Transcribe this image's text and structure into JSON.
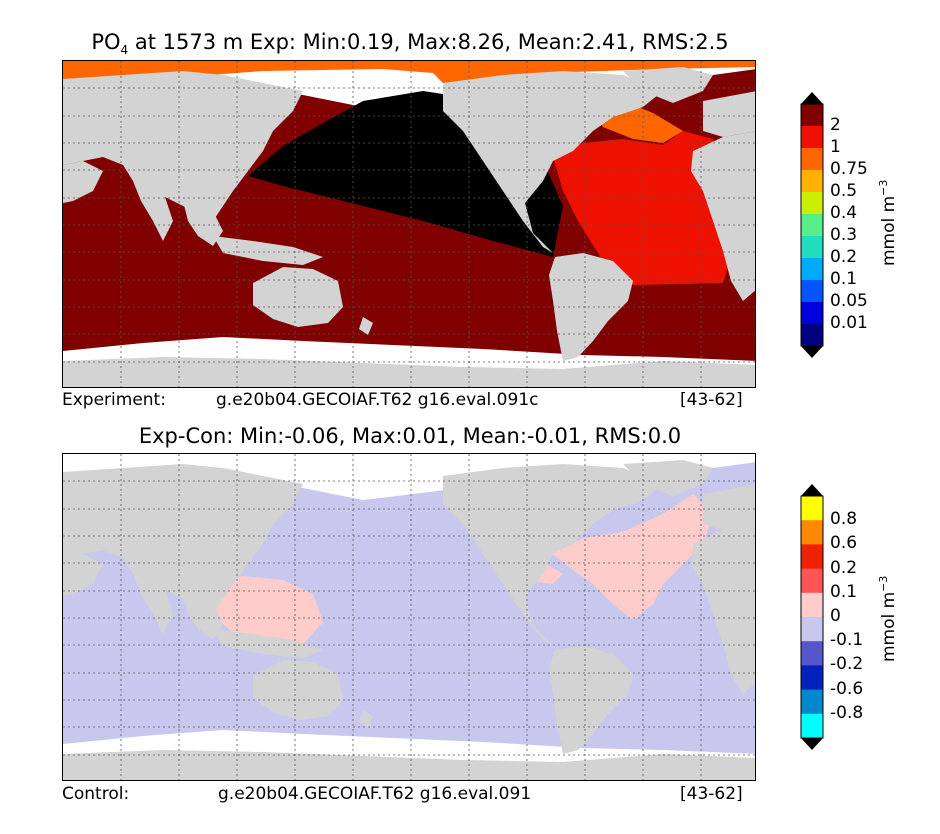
{
  "panels": [
    {
      "title_var": "PO",
      "title_sub": "4",
      "title_rest": " at 1573 m Exp: Min:0.19, Max:8.26, Mean:2.41, RMS:2.5",
      "label_left": "Experiment:",
      "label_case": "g.e20b04.GECOIAF.T62 g16.eval.091c",
      "label_years": "[43-62]",
      "colorbar": {
        "unit": "mmol m",
        "unit_exp": "−3",
        "levels": [
          "2",
          "1",
          "0.75",
          "0.5",
          "0.4",
          "0.3",
          "0.2",
          "0.1",
          "0.05",
          "0.01"
        ],
        "colors": [
          "#800000",
          "#ee1100",
          "#ff6600",
          "#ffb000",
          "#ccee00",
          "#55ee88",
          "#22ddbb",
          "#00aaff",
          "#0055ff",
          "#0000dd",
          "#000080"
        ],
        "over": "#000000",
        "under": "#000000"
      }
    },
    {
      "title_var": "",
      "title_sub": "",
      "title_rest": "Exp-Con: Min:-0.06, Max:0.01, Mean:-0.01, RMS:0.0",
      "label_left": "Control:",
      "label_case": "g.e20b04.GECOIAF.T62 g16.eval.091",
      "label_years": "[43-62]",
      "colorbar": {
        "unit": "mmol m",
        "unit_exp": "−3",
        "levels": [
          "0.8",
          "0.6",
          "0.2",
          "0.1",
          "0",
          "-0.1",
          "-0.2",
          "-0.6",
          "-0.8"
        ],
        "colors": [
          "#ffff00",
          "#ff8800",
          "#ee2200",
          "#ff5555",
          "#ffcccc",
          "#c8c8ee",
          "#5555cc",
          "#0022bb",
          "#0088cc",
          "#00ffff"
        ],
        "over": "#000000",
        "under": "#000000"
      }
    }
  ],
  "map_colors": {
    "land": "#d3d3d3",
    "missing": "#ffffff",
    "exp_pacific": "#000000",
    "exp_atlantic": "#ee1100",
    "exp_south": "#800000",
    "exp_arctic": "#ff6600",
    "diff_base": "#c8c8ee",
    "diff_pos": "#ffcccc"
  }
}
